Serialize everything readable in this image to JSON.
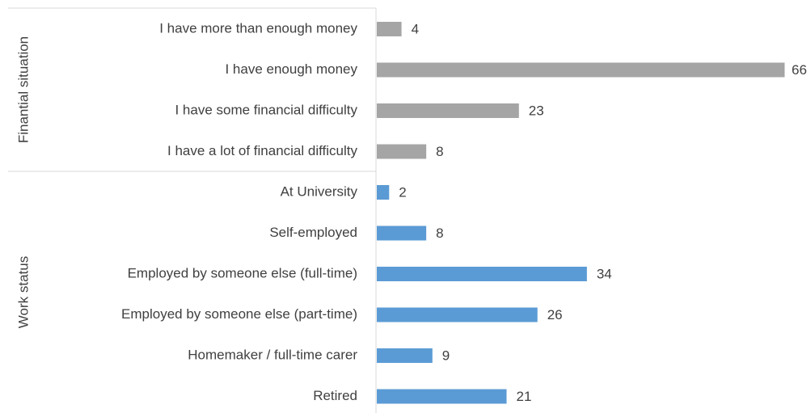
{
  "chart_data": {
    "type": "bar",
    "orientation": "horizontal",
    "xlim": [
      0,
      70
    ],
    "groups": [
      {
        "name": "Finantial situation",
        "color": "#a5a5a5",
        "categories": [
          "I have more than enough money",
          "I have enough money",
          "I have some financial difficulty",
          "I have a lot of financial difficulty"
        ],
        "values": [
          4,
          66,
          23,
          8
        ]
      },
      {
        "name": "Work status",
        "color": "#5b9bd5",
        "categories": [
          "At University",
          "Self-employed",
          "Employed by someone else (full-time)",
          "Employed by someone else (part-time)",
          "Homemaker / full-time carer",
          "Retired"
        ],
        "values": [
          2,
          8,
          34,
          26,
          9,
          21
        ]
      }
    ]
  }
}
